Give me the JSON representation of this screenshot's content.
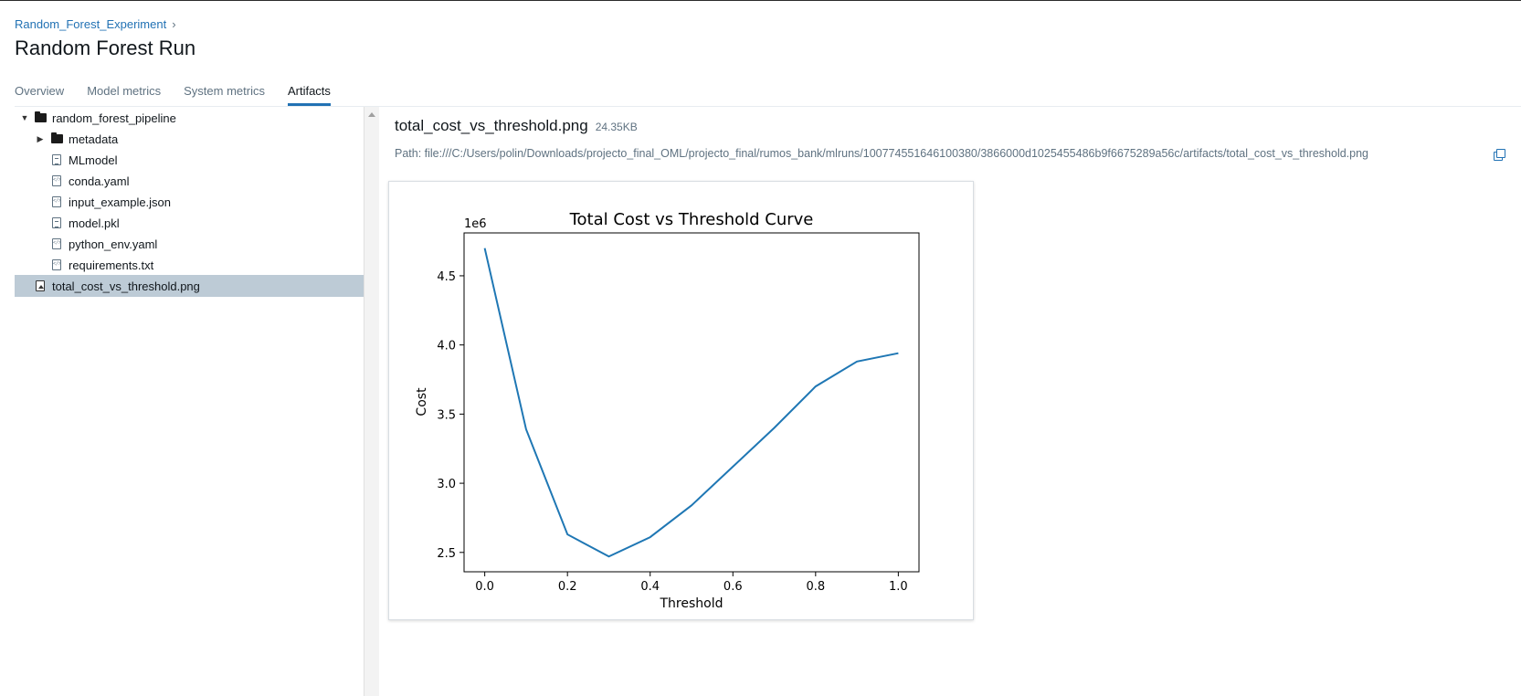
{
  "breadcrumb": {
    "experiment": "Random_Forest_Experiment",
    "separator": "›"
  },
  "title": "Random Forest Run",
  "tabs": [
    {
      "label": "Overview",
      "active": false
    },
    {
      "label": "Model metrics",
      "active": false
    },
    {
      "label": "System metrics",
      "active": false
    },
    {
      "label": "Artifacts",
      "active": true
    }
  ],
  "tree": {
    "items": [
      {
        "label": "random_forest_pipeline",
        "type": "folder",
        "expanded": true
      },
      {
        "label": "metadata",
        "type": "folder",
        "expanded": false
      },
      {
        "label": "MLmodel",
        "type": "file"
      },
      {
        "label": "conda.yaml",
        "type": "file"
      },
      {
        "label": "input_example.json",
        "type": "file"
      },
      {
        "label": "model.pkl",
        "type": "file"
      },
      {
        "label": "python_env.yaml",
        "type": "file"
      },
      {
        "label": "requirements.txt",
        "type": "file"
      },
      {
        "label": "total_cost_vs_threshold.png",
        "type": "image",
        "selected": true
      }
    ]
  },
  "preview": {
    "file_name": "total_cost_vs_threshold.png",
    "file_size": "24.35KB",
    "path": "Path: file:///C:/Users/polin/Downloads/projecto_final_OML/projecto_final/rumos_bank/mlruns/100774551646100380/3866000d1025455486b9f6675289a56c/artifacts/total_cost_vs_threshold.png"
  },
  "colors": {
    "accent": "#2272b4",
    "selected_row": "#bdcbd6",
    "line": "#1f77b4"
  },
  "chart_data": {
    "type": "line",
    "title": "Total Cost vs Threshold Curve",
    "xlabel": "Threshold",
    "ylabel": "Cost",
    "offset_label": "1e6",
    "x": [
      0.0,
      0.1,
      0.2,
      0.3,
      0.4,
      0.5,
      0.6,
      0.7,
      0.8,
      0.9,
      1.0
    ],
    "series": [
      {
        "values": [
          4.7,
          3.39,
          2.63,
          2.47,
          2.61,
          2.84,
          3.12,
          3.4,
          3.7,
          3.88,
          3.94
        ]
      }
    ],
    "xticks": [
      "0.0",
      "0.2",
      "0.4",
      "0.6",
      "0.8",
      "1.0"
    ],
    "yticks": [
      "2.5",
      "3.0",
      "3.5",
      "4.0",
      "4.5"
    ],
    "xlim": [
      -0.05,
      1.05
    ],
    "ylim": [
      2.36,
      4.81
    ],
    "grid": false
  }
}
